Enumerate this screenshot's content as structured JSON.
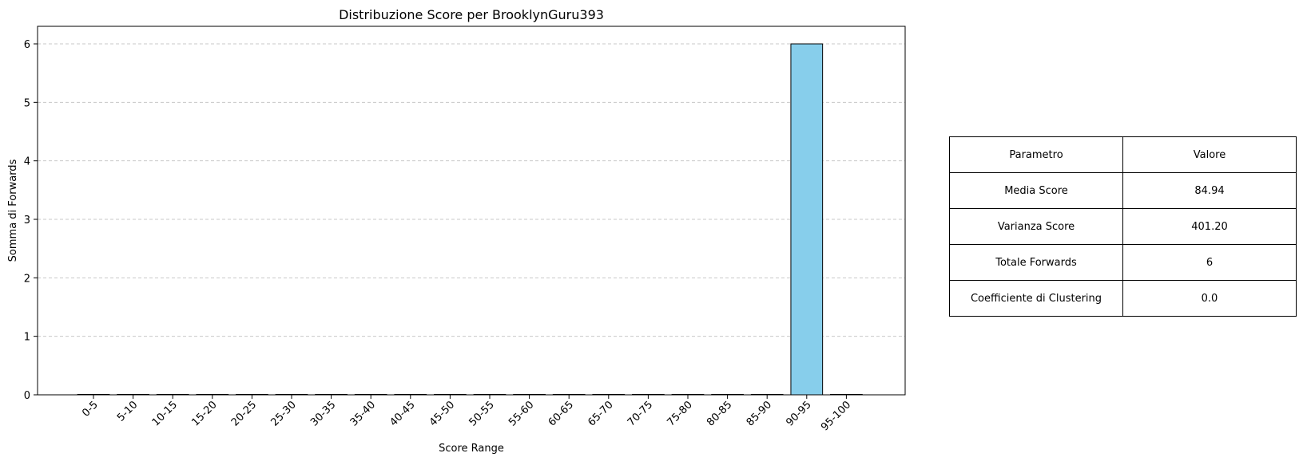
{
  "chart_data": {
    "type": "bar",
    "title": "Distribuzione Score per BrooklynGuru393",
    "xlabel": "Score Range",
    "ylabel": "Somma di Forwards",
    "categories": [
      "0-5",
      "5-10",
      "10-15",
      "15-20",
      "20-25",
      "25-30",
      "30-35",
      "35-40",
      "40-45",
      "45-50",
      "50-55",
      "55-60",
      "60-65",
      "65-70",
      "70-75",
      "75-80",
      "80-85",
      "85-90",
      "90-95",
      "95-100"
    ],
    "values": [
      0,
      0,
      0,
      0,
      0,
      0,
      0,
      0,
      0,
      0,
      0,
      0,
      0,
      0,
      0,
      0,
      0,
      0,
      6,
      0
    ],
    "ylim": [
      0,
      6.3
    ],
    "yticks": [
      0,
      1,
      2,
      3,
      4,
      5,
      6
    ],
    "grid": "y-dashed",
    "bar_color": "#87ceeb",
    "edge_color": "#000000",
    "grid_color": "#c8c8c8"
  },
  "stats_table": {
    "headers": [
      "Parametro",
      "Valore"
    ],
    "rows": [
      [
        "Media Score",
        "84.94"
      ],
      [
        "Varianza Score",
        "401.20"
      ],
      [
        "Totale Forwards",
        "6"
      ],
      [
        "Coefficiente di Clustering",
        "0.0"
      ]
    ]
  }
}
